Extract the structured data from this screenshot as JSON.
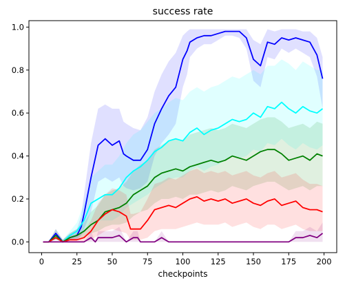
{
  "chart_data": {
    "type": "line",
    "title": "success rate",
    "xlabel": "checkpoints",
    "ylabel": "",
    "xlim": [
      -9,
      209
    ],
    "ylim": [
      -0.05,
      1.03
    ],
    "x_ticks": [
      0,
      25,
      50,
      75,
      100,
      125,
      150,
      175,
      200
    ],
    "x_tick_labels": [
      "0",
      "25",
      "50",
      "75",
      "100",
      "125",
      "150",
      "175",
      "200"
    ],
    "y_ticks": [
      0.0,
      0.2,
      0.4,
      0.6,
      0.8,
      1.0
    ],
    "y_tick_labels": [
      "0.0",
      "0.2",
      "0.4",
      "0.6",
      "0.8",
      "1.0"
    ],
    "grid": false,
    "legend": "none",
    "series": [
      {
        "color": "#0000ff",
        "x": [
          1,
          5,
          10,
          15,
          20,
          25,
          28,
          30,
          35,
          40,
          45,
          50,
          55,
          58,
          60,
          65,
          70,
          75,
          80,
          85,
          90,
          95,
          100,
          103,
          105,
          110,
          115,
          120,
          125,
          130,
          135,
          140,
          145,
          150,
          155,
          160,
          165,
          170,
          175,
          180,
          185,
          190,
          195,
          199
        ],
        "y": [
          0.0,
          0.0,
          0.04,
          0.0,
          0.02,
          0.03,
          0.07,
          0.13,
          0.3,
          0.45,
          0.48,
          0.45,
          0.47,
          0.41,
          0.4,
          0.38,
          0.38,
          0.43,
          0.55,
          0.62,
          0.68,
          0.72,
          0.85,
          0.89,
          0.93,
          0.95,
          0.96,
          0.96,
          0.97,
          0.98,
          0.98,
          0.98,
          0.95,
          0.85,
          0.82,
          0.93,
          0.92,
          0.95,
          0.94,
          0.95,
          0.94,
          0.93,
          0.87,
          0.76
        ],
        "band_lower": [
          0.0,
          0.0,
          0.02,
          0.0,
          0.01,
          0.01,
          0.03,
          0.06,
          0.14,
          0.28,
          0.3,
          0.28,
          0.3,
          0.26,
          0.25,
          0.24,
          0.25,
          0.28,
          0.4,
          0.46,
          0.5,
          0.55,
          0.72,
          0.78,
          0.86,
          0.9,
          0.92,
          0.92,
          0.94,
          0.96,
          0.96,
          0.95,
          0.9,
          0.75,
          0.72,
          0.86,
          0.85,
          0.9,
          0.88,
          0.9,
          0.88,
          0.86,
          0.77,
          0.62
        ],
        "band_upper": [
          0.0,
          0.0,
          0.06,
          0.01,
          0.04,
          0.06,
          0.12,
          0.22,
          0.46,
          0.62,
          0.64,
          0.62,
          0.62,
          0.56,
          0.55,
          0.53,
          0.52,
          0.58,
          0.7,
          0.78,
          0.84,
          0.88,
          0.96,
          0.98,
          0.99,
          0.99,
          0.99,
          0.99,
          0.99,
          0.99,
          0.99,
          0.99,
          0.99,
          0.94,
          0.92,
          0.99,
          0.98,
          0.99,
          0.99,
          0.99,
          0.98,
          0.98,
          0.95,
          0.86
        ]
      },
      {
        "color": "#00ffff",
        "x": [
          1,
          5,
          10,
          15,
          20,
          25,
          30,
          35,
          40,
          45,
          50,
          55,
          60,
          65,
          70,
          75,
          80,
          85,
          90,
          95,
          100,
          105,
          110,
          115,
          120,
          125,
          130,
          135,
          140,
          145,
          150,
          155,
          160,
          165,
          170,
          175,
          180,
          185,
          190,
          195,
          199
        ],
        "y": [
          0.0,
          0.0,
          0.02,
          0.0,
          0.03,
          0.05,
          0.1,
          0.18,
          0.2,
          0.22,
          0.22,
          0.25,
          0.3,
          0.33,
          0.35,
          0.38,
          0.42,
          0.44,
          0.47,
          0.48,
          0.47,
          0.51,
          0.53,
          0.5,
          0.52,
          0.53,
          0.55,
          0.57,
          0.56,
          0.57,
          0.6,
          0.58,
          0.63,
          0.62,
          0.65,
          0.62,
          0.6,
          0.63,
          0.61,
          0.6,
          0.62
        ],
        "band_lower": [
          0.0,
          0.0,
          0.01,
          0.0,
          0.01,
          0.02,
          0.04,
          0.08,
          0.1,
          0.1,
          0.1,
          0.12,
          0.16,
          0.18,
          0.2,
          0.22,
          0.25,
          0.27,
          0.29,
          0.3,
          0.3,
          0.33,
          0.35,
          0.33,
          0.35,
          0.36,
          0.38,
          0.4,
          0.39,
          0.4,
          0.43,
          0.42,
          0.46,
          0.45,
          0.48,
          0.45,
          0.43,
          0.46,
          0.44,
          0.43,
          0.45
        ],
        "band_upper": [
          0.0,
          0.0,
          0.04,
          0.01,
          0.05,
          0.09,
          0.18,
          0.3,
          0.33,
          0.36,
          0.36,
          0.4,
          0.46,
          0.5,
          0.52,
          0.56,
          0.6,
          0.62,
          0.65,
          0.67,
          0.66,
          0.7,
          0.72,
          0.7,
          0.72,
          0.73,
          0.75,
          0.77,
          0.76,
          0.78,
          0.8,
          0.78,
          0.82,
          0.82,
          0.85,
          0.83,
          0.8,
          0.84,
          0.82,
          0.8,
          0.8
        ]
      },
      {
        "color": "#008000",
        "x": [
          1,
          5,
          10,
          15,
          20,
          25,
          30,
          35,
          40,
          45,
          50,
          55,
          60,
          65,
          70,
          75,
          80,
          85,
          90,
          95,
          100,
          105,
          110,
          115,
          120,
          125,
          130,
          135,
          140,
          145,
          150,
          155,
          160,
          165,
          170,
          175,
          180,
          185,
          190,
          195,
          199
        ],
        "y": [
          0.0,
          0.0,
          0.03,
          0.0,
          0.02,
          0.03,
          0.05,
          0.08,
          0.1,
          0.14,
          0.15,
          0.16,
          0.18,
          0.22,
          0.24,
          0.26,
          0.3,
          0.32,
          0.33,
          0.34,
          0.33,
          0.35,
          0.36,
          0.37,
          0.38,
          0.37,
          0.38,
          0.4,
          0.39,
          0.38,
          0.4,
          0.42,
          0.43,
          0.43,
          0.41,
          0.38,
          0.39,
          0.4,
          0.38,
          0.41,
          0.4
        ],
        "band_lower": [
          0.0,
          0.0,
          0.01,
          0.0,
          0.01,
          0.01,
          0.02,
          0.04,
          0.05,
          0.07,
          0.08,
          0.08,
          0.09,
          0.12,
          0.14,
          0.15,
          0.18,
          0.2,
          0.2,
          0.21,
          0.2,
          0.22,
          0.22,
          0.23,
          0.24,
          0.23,
          0.24,
          0.26,
          0.25,
          0.24,
          0.26,
          0.27,
          0.28,
          0.28,
          0.26,
          0.24,
          0.25,
          0.26,
          0.24,
          0.26,
          0.26
        ],
        "band_upper": [
          0.0,
          0.0,
          0.06,
          0.01,
          0.04,
          0.06,
          0.09,
          0.14,
          0.17,
          0.22,
          0.24,
          0.25,
          0.28,
          0.33,
          0.36,
          0.38,
          0.43,
          0.45,
          0.47,
          0.48,
          0.47,
          0.5,
          0.51,
          0.52,
          0.53,
          0.52,
          0.53,
          0.55,
          0.54,
          0.53,
          0.55,
          0.57,
          0.58,
          0.58,
          0.56,
          0.53,
          0.54,
          0.55,
          0.53,
          0.56,
          0.55
        ]
      },
      {
        "color": "#ff0000",
        "x": [
          1,
          5,
          10,
          15,
          20,
          25,
          30,
          35,
          40,
          45,
          50,
          55,
          60,
          63,
          65,
          70,
          75,
          80,
          85,
          90,
          95,
          100,
          105,
          110,
          115,
          120,
          125,
          130,
          135,
          140,
          145,
          150,
          155,
          160,
          165,
          170,
          175,
          180,
          185,
          190,
          195,
          199
        ],
        "y": [
          0.0,
          0.0,
          0.02,
          0.0,
          0.01,
          0.01,
          0.02,
          0.05,
          0.1,
          0.13,
          0.15,
          0.14,
          0.12,
          0.06,
          0.06,
          0.06,
          0.1,
          0.15,
          0.16,
          0.17,
          0.16,
          0.18,
          0.2,
          0.21,
          0.19,
          0.2,
          0.19,
          0.2,
          0.18,
          0.19,
          0.2,
          0.18,
          0.17,
          0.19,
          0.2,
          0.17,
          0.18,
          0.19,
          0.16,
          0.15,
          0.15,
          0.14
        ],
        "band_lower": [
          0.0,
          0.0,
          0.01,
          0.0,
          0.0,
          0.0,
          0.0,
          0.01,
          0.03,
          0.05,
          0.06,
          0.05,
          0.04,
          0.01,
          0.01,
          0.01,
          0.02,
          0.05,
          0.06,
          0.06,
          0.06,
          0.07,
          0.08,
          0.09,
          0.08,
          0.08,
          0.08,
          0.09,
          0.07,
          0.08,
          0.09,
          0.07,
          0.06,
          0.08,
          0.08,
          0.06,
          0.07,
          0.08,
          0.06,
          0.05,
          0.05,
          0.05
        ],
        "band_upper": [
          0.0,
          0.0,
          0.04,
          0.01,
          0.03,
          0.03,
          0.05,
          0.1,
          0.18,
          0.22,
          0.25,
          0.24,
          0.22,
          0.13,
          0.13,
          0.14,
          0.2,
          0.27,
          0.28,
          0.3,
          0.29,
          0.31,
          0.33,
          0.34,
          0.32,
          0.33,
          0.32,
          0.33,
          0.31,
          0.32,
          0.33,
          0.31,
          0.3,
          0.32,
          0.33,
          0.3,
          0.31,
          0.32,
          0.29,
          0.27,
          0.27,
          0.26
        ]
      },
      {
        "color": "#800080",
        "x": [
          1,
          5,
          10,
          15,
          20,
          25,
          30,
          35,
          38,
          40,
          45,
          50,
          55,
          60,
          65,
          68,
          70,
          75,
          80,
          85,
          90,
          95,
          100,
          105,
          110,
          115,
          120,
          125,
          130,
          135,
          140,
          145,
          150,
          155,
          160,
          165,
          170,
          175,
          180,
          185,
          190,
          195,
          199
        ],
        "y": [
          0.0,
          0.0,
          0.0,
          0.0,
          0.0,
          0.0,
          0.0,
          0.02,
          0.0,
          0.02,
          0.02,
          0.02,
          0.03,
          0.0,
          0.02,
          0.02,
          0.0,
          0.0,
          0.0,
          0.02,
          0.0,
          0.0,
          0.0,
          0.0,
          0.0,
          0.0,
          0.0,
          0.0,
          0.0,
          0.0,
          0.0,
          0.0,
          0.0,
          0.0,
          0.0,
          0.0,
          0.0,
          0.0,
          0.02,
          0.02,
          0.03,
          0.02,
          0.04
        ],
        "band_lower": [
          0.0,
          0.0,
          0.0,
          0.0,
          0.0,
          0.0,
          0.0,
          0.0,
          0.0,
          0.0,
          0.0,
          0.0,
          0.0,
          0.0,
          0.0,
          0.0,
          0.0,
          0.0,
          0.0,
          0.0,
          0.0,
          0.0,
          0.0,
          0.0,
          0.0,
          0.0,
          0.0,
          0.0,
          0.0,
          0.0,
          0.0,
          0.0,
          0.0,
          0.0,
          0.0,
          0.0,
          0.0,
          0.0,
          0.0,
          0.0,
          0.0,
          0.0,
          0.0
        ],
        "band_upper": [
          0.0,
          0.0,
          0.0,
          0.0,
          0.0,
          0.0,
          0.0,
          0.05,
          0.0,
          0.05,
          0.05,
          0.05,
          0.07,
          0.0,
          0.05,
          0.05,
          0.0,
          0.0,
          0.0,
          0.05,
          0.0,
          0.0,
          0.0,
          0.0,
          0.0,
          0.0,
          0.0,
          0.0,
          0.0,
          0.0,
          0.0,
          0.0,
          0.0,
          0.0,
          0.0,
          0.0,
          0.0,
          0.0,
          0.05,
          0.05,
          0.07,
          0.05,
          0.09
        ]
      }
    ]
  }
}
